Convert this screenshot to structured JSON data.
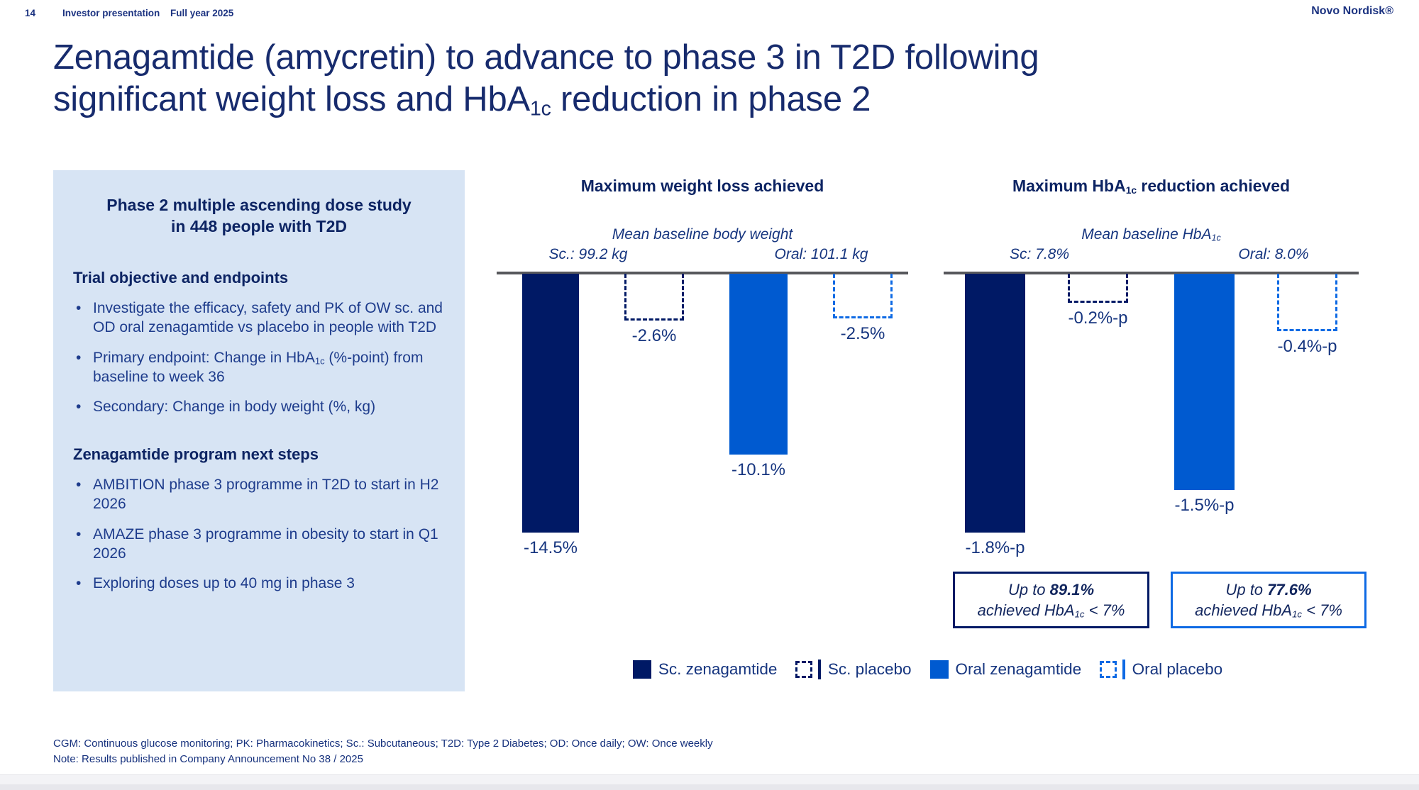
{
  "colors": {
    "navy": "#001965",
    "blue": "#005AD0",
    "blue_outline": "#0E6AE4",
    "panel_bg": "#D7E4F4",
    "axis_gray": "#57585C"
  },
  "header": {
    "page_number": "14",
    "section": "Investor presentation",
    "period": "Full year 2025",
    "brand": "Novo Nordisk®"
  },
  "title": {
    "line1": "Zenagamtide (amycretin) to advance to phase 3 in T2D following",
    "line2_pre": "significant weight loss and HbA",
    "line2_sub": "1c",
    "line2_post": " reduction in phase 2"
  },
  "panel": {
    "heading_line1": "Phase 2 multiple ascending dose study",
    "heading_line2": "in 448 people with T2D",
    "section1_title": "Trial objective and endpoints",
    "section1_bullets": [
      {
        "pre": "Investigate the efficacy, safety and PK of OW sc. and OD oral zenagamtide vs placebo in people with T2D",
        "sub": "",
        "post": ""
      },
      {
        "pre": "Primary endpoint: Change in HbA",
        "sub": "1c",
        "post": " (%-point) from baseline to week 36"
      },
      {
        "pre": "Secondary: Change in body weight (%, kg)",
        "sub": "",
        "post": ""
      }
    ],
    "section2_title": "Zenagamtide program next steps",
    "section2_bullets": [
      {
        "pre": "AMBITION phase 3 programme in T2D to start in H2 2026",
        "sub": "",
        "post": ""
      },
      {
        "pre": "AMAZE phase 3 programme in obesity to start in Q1 2026",
        "sub": "",
        "post": ""
      },
      {
        "pre": "Exploring doses up to 40 mg in phase 3",
        "sub": "",
        "post": ""
      }
    ]
  },
  "charts_ui": {
    "weight": {
      "title": "Maximum weight loss achieved",
      "baseline_caption": "Mean baseline body weight",
      "sc_label": "Sc.: 99.2 kg",
      "oral_label": "Oral: 101.1 kg",
      "bars": [
        "-14.5%",
        "-2.6%",
        "-10.1%",
        "-2.5%"
      ]
    },
    "hba1c": {
      "title_pre": "Maximum HbA",
      "title_sub": "1c",
      "title_post": " reduction achieved",
      "baseline_caption_pre": "Mean baseline HbA",
      "baseline_caption_sub": "1c",
      "sc_label": "Sc: 7.8%",
      "oral_label": "Oral: 8.0%",
      "bars": [
        "-1.8%-p",
        "-0.2%-p",
        "-1.5%-p",
        "-0.4%-p"
      ]
    }
  },
  "callouts": {
    "sc": {
      "lead": "Up to ",
      "value": "89.1%",
      "tail_pre": "achieved HbA",
      "tail_sub": "1c",
      "tail_post": " < 7%"
    },
    "oral": {
      "lead": "Up to ",
      "value": "77.6%",
      "tail_pre": "achieved HbA",
      "tail_sub": "1c",
      "tail_post": " < 7%"
    }
  },
  "legend": {
    "items": [
      {
        "label": "Sc. zenagamtide",
        "swatch": "solid-navy"
      },
      {
        "label": "Sc. placebo",
        "swatch": "dashed-navy"
      },
      {
        "label": "Oral zenagamtide",
        "swatch": "solid-blue"
      },
      {
        "label": "Oral placebo",
        "swatch": "dashed-blue"
      }
    ]
  },
  "footnotes": {
    "abbreviations": "CGM: Continuous glucose monitoring; PK: Pharmacokinetics; Sc.: Subcutaneous; T2D: Type 2 Diabetes; OD: Once daily; OW: Once weekly",
    "note": "Note: Results published in Company Announcement No 38 / 2025"
  },
  "chart_data": [
    {
      "type": "bar",
      "title": "Maximum weight loss achieved",
      "categories": [
        "Sc. zenagamtide",
        "Sc. placebo",
        "Oral zenagamtide",
        "Oral placebo"
      ],
      "values": [
        -14.5,
        -2.6,
        -10.1,
        -2.5
      ],
      "data_labels": [
        "-14.5%",
        "-2.6%",
        "-10.1%",
        "-2.5%"
      ],
      "unit": "%",
      "bar_styles": [
        "solid-navy",
        "dashed-navy",
        "solid-blue",
        "dashed-blue"
      ],
      "annotations": [
        "Mean baseline body weight",
        "Sc.: 99.2 kg",
        "Oral: 101.1 kg"
      ],
      "ylim": [
        -16,
        0
      ],
      "grid": false,
      "legend_position": "bottom"
    },
    {
      "type": "bar",
      "title": "Maximum HbA1c reduction achieved",
      "categories": [
        "Sc. zenagamtide",
        "Sc. placebo",
        "Oral zenagamtide",
        "Oral placebo"
      ],
      "values": [
        -1.8,
        -0.2,
        -1.5,
        -0.4
      ],
      "data_labels": [
        "-1.8%-p",
        "-0.2%-p",
        "-1.5%-p",
        "-0.4%-p"
      ],
      "unit": "%-point",
      "bar_styles": [
        "solid-navy",
        "dashed-navy",
        "solid-blue",
        "dashed-blue"
      ],
      "annotations": [
        "Mean baseline HbA1c",
        "Sc: 7.8%",
        "Oral: 8.0%"
      ],
      "ylim": [
        -2,
        0
      ],
      "grid": false,
      "legend_position": "bottom"
    }
  ]
}
